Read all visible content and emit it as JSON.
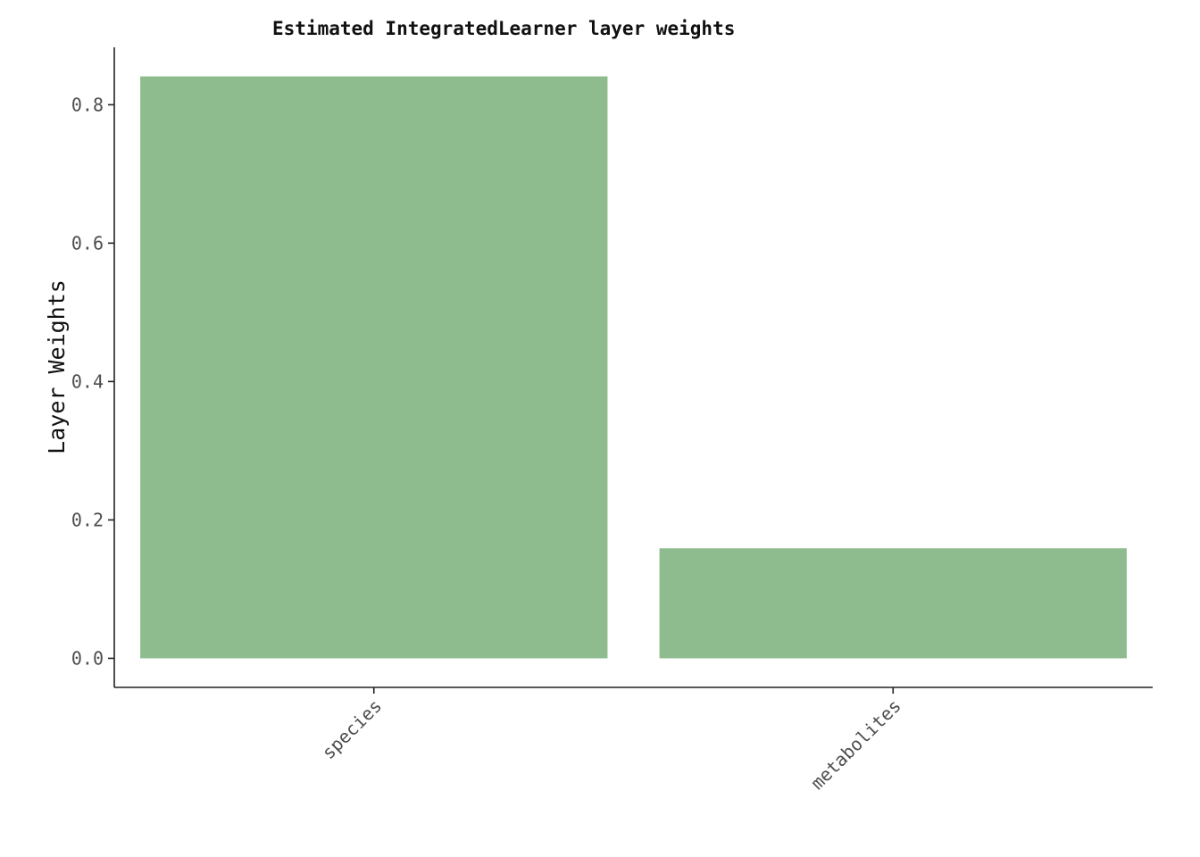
{
  "chart_data": {
    "type": "bar",
    "title": "Estimated IntegratedLearner layer weights",
    "xlabel": "",
    "ylabel": "Layer Weights",
    "categories": [
      "species",
      "metabolites"
    ],
    "values": [
      0.841,
      0.159
    ],
    "ylim": [
      -0.042,
      0.883
    ],
    "yticks": [
      0.0,
      0.2,
      0.4,
      0.6,
      0.8
    ],
    "ytick_labels": [
      "0.0",
      "0.2",
      "0.4",
      "0.6",
      "0.8"
    ],
    "bar_color": "#8fbc8f",
    "grid": false,
    "legend": "none"
  }
}
